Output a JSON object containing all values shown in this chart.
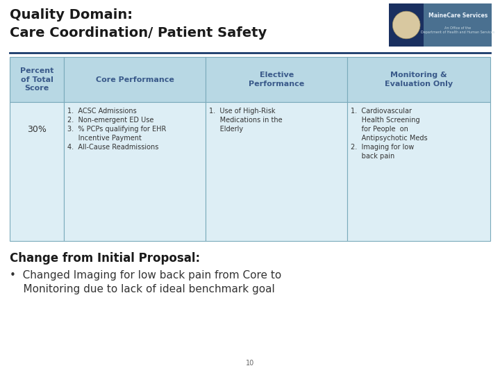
{
  "title_line1": "Quality Domain:",
  "title_line2": "Care Coordination/ Patient Safety",
  "title_color": "#1a1a1a",
  "title_fontsize": 14,
  "header_bg_color": "#b8d8e4",
  "header_text_color": "#3a5a8a",
  "row_bg_color": "#ddeef5",
  "border_color": "#7aaabb",
  "col_headers": [
    "Percent\nof Total\nScore",
    "Core Performance",
    "Elective\nPerformance",
    "Monitoring &\nEvaluation Only"
  ],
  "percent_value": "30%",
  "core_lines": [
    "1.  ACSC Admissions",
    "2.  Non-emergent ED Use",
    "3.  % PCPs qualifying for EHR",
    "     Incentive Payment",
    "4.  All-Cause Readmissions"
  ],
  "elective_lines": [
    "1.  Use of High-Risk",
    "     Medications in the",
    "     Elderly"
  ],
  "monitoring_lines": [
    "1.  Cardiovascular",
    "     Health Screening",
    "     for People  on",
    "     Antipsychotic Meds",
    "2.  Imaging for low",
    "     back pain"
  ],
  "bottom_title": "Change from Initial Proposal:",
  "bottom_bullet_line1": "•  Changed Imaging for low back pain from Core to",
  "bottom_bullet_line2": "    Monitoring due to lack of ideal benchmark goal",
  "page_number": "10",
  "bg_color": "#ffffff",
  "divider_color": "#1a3a6a",
  "cell_text_color": "#333333",
  "bottom_title_color": "#1a1a1a",
  "bottom_bullet_color": "#333333",
  "logo_seal_color": "#1a3060",
  "logo_text_bg": "#4a7090",
  "logo_text1": "MaineCare Services",
  "logo_text2": "An Office of the\nDepartment of Health and Human Services"
}
